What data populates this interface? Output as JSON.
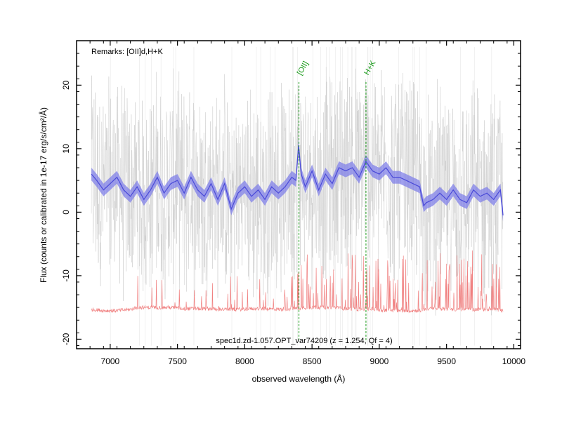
{
  "chart_data": {
    "type": "line",
    "xlabel": "observed wavelength (Å)",
    "ylabel": "Flux (counts or calibrated in 1e-17 erg/s/cm²/Å)",
    "xlim": [
      6750,
      10050
    ],
    "ylim": [
      -21.5,
      27
    ],
    "x_ticks": [
      7000,
      7500,
      8000,
      8500,
      9000,
      9500,
      10000
    ],
    "y_ticks": [
      -20,
      -10,
      0,
      10,
      20
    ],
    "remarks": "Remarks: [OII]d,H+K",
    "footer_label": "spec1d.zd-1.057.OPT_var74209 (z = 1.254, Qf = 4)",
    "grid": false,
    "colors": {
      "raw_spectrum": "#c8c8c8",
      "smoothed_spectrum": "#4a4ad8",
      "uncertainty_band": "#8080e8",
      "error_spectrum": "#f08080",
      "line_markers": "#1a9a1a"
    },
    "line_markers": [
      {
        "label": "[OII]",
        "x": 8403
      },
      {
        "label": "H+K",
        "x": 8901
      }
    ],
    "series": [
      {
        "role": "smoothed",
        "x": [
          6860,
          6900,
          6950,
          7000,
          7050,
          7100,
          7150,
          7200,
          7250,
          7300,
          7350,
          7400,
          7450,
          7500,
          7550,
          7600,
          7650,
          7700,
          7750,
          7800,
          7850,
          7900,
          7950,
          8000,
          8050,
          8100,
          8150,
          8200,
          8250,
          8300,
          8350,
          8380,
          8400,
          8420,
          8450,
          8500,
          8550,
          8600,
          8650,
          8700,
          8750,
          8800,
          8850,
          8900,
          8950,
          9000,
          9050,
          9100,
          9150,
          9200,
          9250,
          9300,
          9330,
          9350,
          9400,
          9450,
          9500,
          9550,
          9600,
          9650,
          9700,
          9750,
          9800,
          9850,
          9900,
          9920
        ],
        "y": [
          6.0,
          5.0,
          3.5,
          4.5,
          5.5,
          3.5,
          2.5,
          4.0,
          2.0,
          3.5,
          5.5,
          3.0,
          4.5,
          5.0,
          3.0,
          5.5,
          3.5,
          2.5,
          4.5,
          2.0,
          4.5,
          0.5,
          3.0,
          4.0,
          2.5,
          3.5,
          2.0,
          4.0,
          3.0,
          4.0,
          5.5,
          5.0,
          10.5,
          6.0,
          4.0,
          6.5,
          3.5,
          6.0,
          4.5,
          7.0,
          6.5,
          7.0,
          5.5,
          8.0,
          6.5,
          6.0,
          7.0,
          5.5,
          5.5,
          5.0,
          4.5,
          4.0,
          1.0,
          1.5,
          2.0,
          3.0,
          2.0,
          3.5,
          2.0,
          1.5,
          3.5,
          2.5,
          3.0,
          2.0,
          3.5,
          -0.5
        ]
      },
      {
        "role": "uncertainty",
        "x": [
          6860,
          6900,
          6950,
          7000,
          7050,
          7100,
          7150,
          7200,
          7250,
          7300,
          7350,
          7400,
          7450,
          7500,
          7550,
          7600,
          7650,
          7700,
          7750,
          7800,
          7850,
          7900,
          7950,
          8000,
          8050,
          8100,
          8150,
          8200,
          8250,
          8300,
          8350,
          8380,
          8400,
          8420,
          8450,
          8500,
          8550,
          8600,
          8650,
          8700,
          8750,
          8800,
          8850,
          8900,
          8950,
          9000,
          9050,
          9100,
          9150,
          9200,
          9250,
          9300,
          9330,
          9350,
          9400,
          9450,
          9500,
          9550,
          9600,
          9650,
          9700,
          9750,
          9800,
          9850,
          9900,
          9920
        ],
        "y": [
          1.0,
          1.0,
          1.0,
          1.0,
          1.0,
          1.0,
          1.0,
          1.0,
          1.0,
          1.0,
          1.0,
          1.0,
          1.0,
          1.0,
          1.0,
          1.0,
          1.0,
          1.0,
          1.0,
          1.0,
          1.0,
          1.0,
          1.0,
          1.0,
          1.0,
          1.0,
          1.0,
          1.0,
          1.0,
          1.0,
          1.0,
          1.0,
          1.0,
          1.0,
          1.0,
          1.0,
          1.0,
          1.0,
          1.0,
          1.0,
          1.0,
          1.0,
          1.0,
          1.0,
          1.0,
          1.0,
          1.0,
          1.0,
          1.0,
          1.0,
          1.0,
          1.0,
          1.0,
          1.0,
          1.0,
          1.0,
          1.0,
          1.0,
          1.0,
          1.0,
          1.0,
          1.0,
          1.0,
          1.0,
          1.0,
          1.0
        ]
      },
      {
        "role": "error",
        "x": [
          6860,
          6950,
          7050,
          7150,
          7200,
          7250,
          7350,
          7450,
          7550,
          7650,
          7750,
          7850,
          7950,
          8050,
          8150,
          8250,
          8350,
          8450,
          8550,
          8650,
          8750,
          8850,
          8950,
          9050,
          9150,
          9250,
          9300,
          9350,
          9450,
          9550,
          9650,
          9750,
          9850,
          9920
        ],
        "y": [
          -15.3,
          -15.5,
          -15.5,
          -15.3,
          -15.0,
          -15.0,
          -15.0,
          -15.0,
          -15.2,
          -15.2,
          -15.2,
          -15.3,
          -15.3,
          -15.2,
          -15.2,
          -15.3,
          -15.2,
          -15.0,
          -15.0,
          -15.0,
          -15.2,
          -15.3,
          -15.2,
          -15.5,
          -15.5,
          -15.5,
          -15.5,
          -15.2,
          -15.2,
          -15.3,
          -15.3,
          -15.3,
          -15.3,
          -15.5
        ]
      }
    ]
  }
}
